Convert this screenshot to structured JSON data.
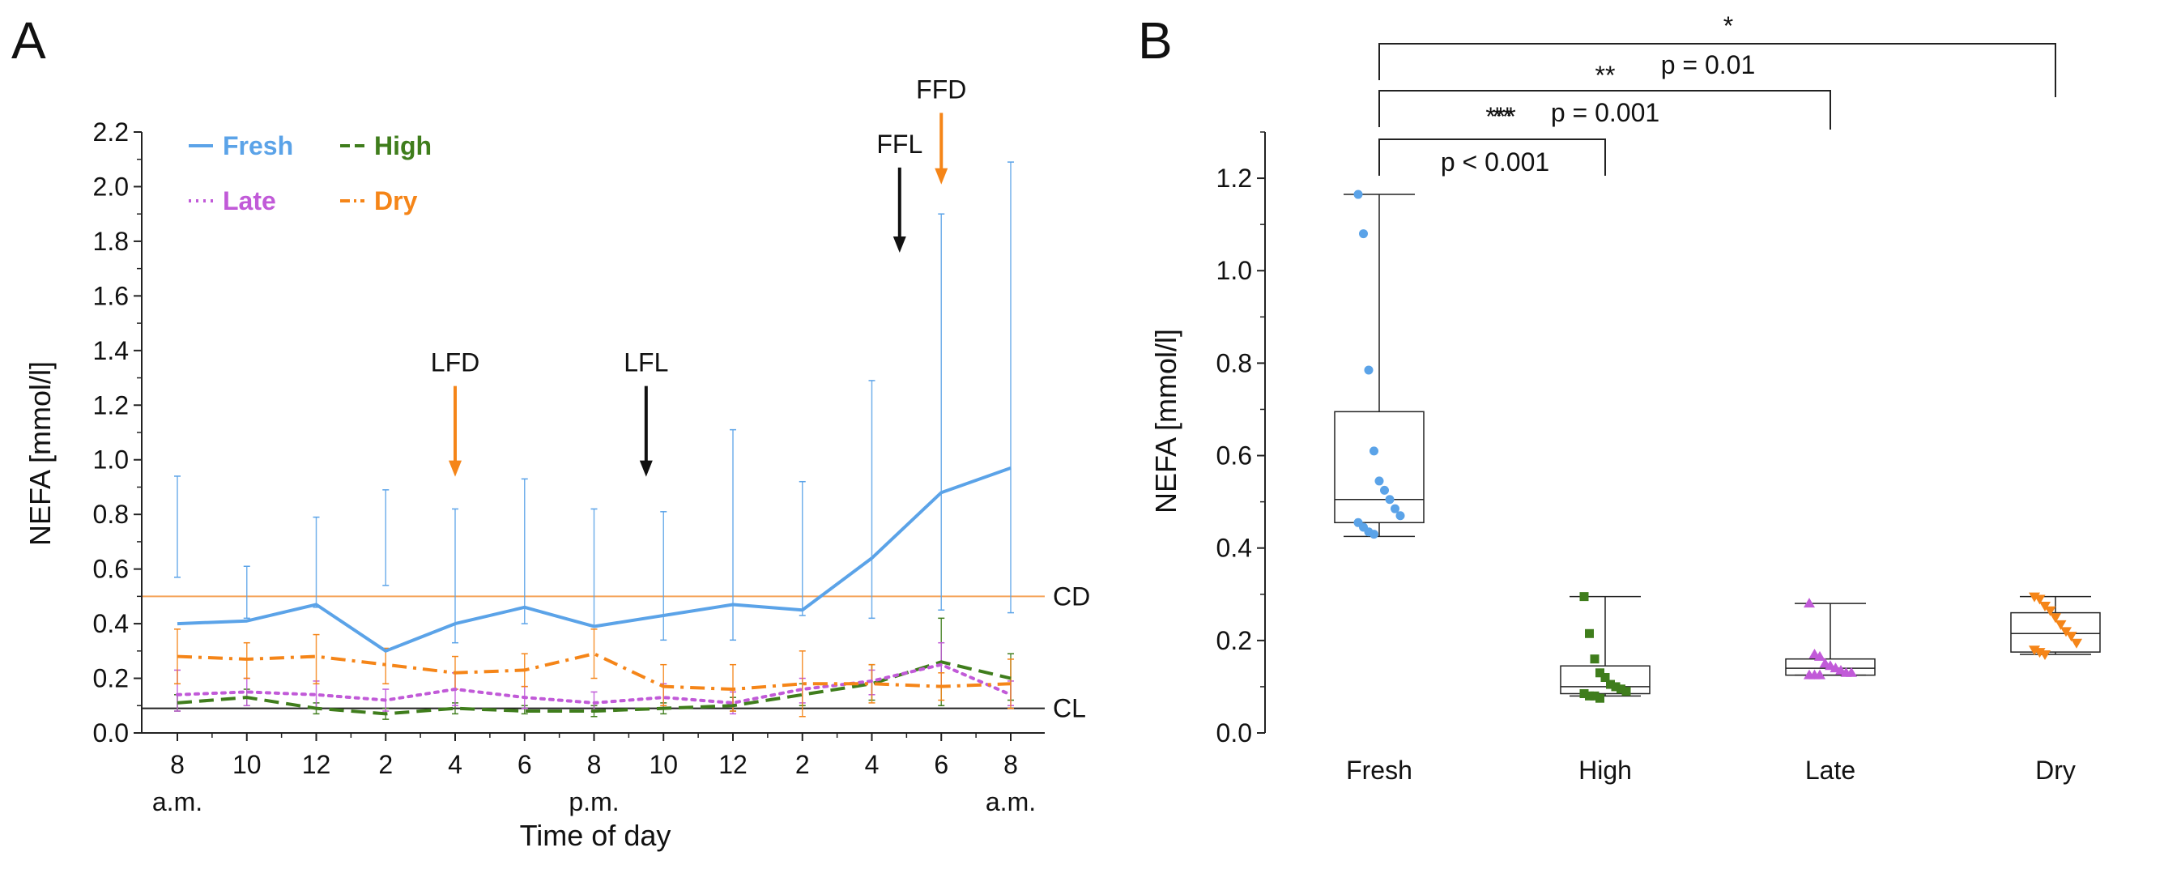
{
  "chart_data": [
    {
      "panel": "A",
      "type": "line",
      "xlabel": "Time of day",
      "ylabel": "NEFA [mmol/l]",
      "ylim": [
        0,
        2.2
      ],
      "yticks": [
        "0.0",
        "0.2",
        "0.4",
        "0.6",
        "0.8",
        "1.0",
        "1.2",
        "1.4",
        "1.6",
        "1.8",
        "2.0",
        "2.2"
      ],
      "categories": [
        "8",
        "10",
        "12",
        "2",
        "4",
        "6",
        "8",
        "10",
        "12",
        "2",
        "4",
        "6",
        "8"
      ],
      "period_labels": [
        {
          "at": 0,
          "text": "a.m."
        },
        {
          "at": 6,
          "text": "p.m."
        },
        {
          "at": 12,
          "text": "a.m."
        }
      ],
      "series": [
        {
          "name": "Fresh",
          "color": "#5ba3e8",
          "dash": "solid",
          "values": [
            0.4,
            0.41,
            0.47,
            0.3,
            0.4,
            0.46,
            0.39,
            0.43,
            0.47,
            0.45,
            0.64,
            0.88,
            0.97
          ],
          "err_up": [
            0.94,
            0.61,
            0.79,
            0.89,
            0.82,
            0.93,
            0.82,
            0.81,
            1.11,
            0.92,
            1.29,
            1.9,
            2.09
          ],
          "err_low": [
            0.57,
            0.42,
            0.46,
            0.54,
            0.33,
            0.4,
            0.39,
            0.34,
            0.34,
            0.43,
            0.42,
            0.45,
            0.44
          ]
        },
        {
          "name": "High",
          "color": "#3f7d1c",
          "dash": "long",
          "values": [
            0.11,
            0.13,
            0.09,
            0.07,
            0.09,
            0.08,
            0.08,
            0.09,
            0.1,
            0.14,
            0.18,
            0.26,
            0.2
          ],
          "err_up": [
            0.14,
            0.16,
            0.11,
            0.09,
            0.11,
            0.1,
            0.1,
            0.11,
            0.13,
            0.18,
            0.25,
            0.42,
            0.29
          ],
          "err_low": [
            0.08,
            0.1,
            0.07,
            0.05,
            0.07,
            0.07,
            0.06,
            0.07,
            0.08,
            0.1,
            0.12,
            0.1,
            0.12
          ]
        },
        {
          "name": "Late",
          "color": "#c15ad8",
          "dash": "dot",
          "values": [
            0.14,
            0.15,
            0.14,
            0.12,
            0.16,
            0.13,
            0.11,
            0.13,
            0.11,
            0.16,
            0.19,
            0.25,
            0.14
          ],
          "err_up": [
            0.23,
            0.2,
            0.19,
            0.16,
            0.22,
            0.17,
            0.15,
            0.18,
            0.15,
            0.2,
            0.23,
            0.33,
            0.19
          ],
          "err_low": [
            0.08,
            0.1,
            0.09,
            0.08,
            0.1,
            0.09,
            0.08,
            0.09,
            0.07,
            0.11,
            0.14,
            0.17,
            0.1
          ]
        },
        {
          "name": "Dry",
          "color": "#f58518",
          "dash": "dashdot",
          "values": [
            0.28,
            0.27,
            0.28,
            0.25,
            0.22,
            0.23,
            0.29,
            0.17,
            0.16,
            0.18,
            0.18,
            0.17,
            0.18
          ],
          "err_up": [
            0.38,
            0.33,
            0.36,
            0.31,
            0.28,
            0.29,
            0.38,
            0.25,
            0.25,
            0.3,
            0.25,
            0.22,
            0.27
          ],
          "err_low": [
            0.18,
            0.2,
            0.18,
            0.18,
            0.16,
            0.17,
            0.2,
            0.1,
            0.08,
            0.06,
            0.11,
            0.12,
            0.09
          ]
        }
      ],
      "reference_lines": [
        {
          "name": "CD",
          "y": 0.5,
          "color": "#f5a35a"
        },
        {
          "name": "CL",
          "y": 0.09,
          "color": "#222222"
        }
      ],
      "arrows": [
        {
          "label": "LFD",
          "at": 4,
          "color": "#f58518",
          "top": 1.27,
          "bottom": 0.95
        },
        {
          "label": "LFL",
          "at": 6.75,
          "color": "#111111",
          "top": 1.27,
          "bottom": 0.95
        },
        {
          "label": "FFL",
          "at": 10.4,
          "color": "#111111",
          "top": 2.07,
          "bottom": 1.77
        },
        {
          "label": "FFD",
          "at": 11,
          "color": "#f58518",
          "top": 2.27,
          "bottom": 2.02
        }
      ],
      "legend": [
        {
          "name": "Fresh",
          "color": "#5ba3e8"
        },
        {
          "name": "High",
          "color": "#3f7d1c"
        },
        {
          "name": "Late",
          "color": "#c15ad8"
        },
        {
          "name": "Dry",
          "color": "#f58518"
        }
      ]
    },
    {
      "panel": "B",
      "type": "box",
      "ylabel": "NEFA [mmol/l]",
      "ylim": [
        0,
        1.3
      ],
      "yticks": [
        "0.0",
        "0.2",
        "0.4",
        "0.6",
        "0.8",
        "1.0",
        "1.2"
      ],
      "categories": [
        "Fresh",
        "High",
        "Late",
        "Dry"
      ],
      "boxes": [
        {
          "name": "Fresh",
          "color": "#5ba3e8",
          "marker": "circle",
          "whisker_low": 0.425,
          "q1": 0.455,
          "median": 0.505,
          "q3": 0.695,
          "whisker_high": 1.165,
          "points": [
            1.165,
            1.08,
            0.785,
            0.61,
            0.545,
            0.525,
            0.505,
            0.485,
            0.47,
            0.455,
            0.445,
            0.435,
            0.43
          ]
        },
        {
          "name": "High",
          "color": "#3f7d1c",
          "marker": "square",
          "whisker_low": 0.08,
          "q1": 0.085,
          "median": 0.1,
          "q3": 0.145,
          "whisker_high": 0.295,
          "points": [
            0.295,
            0.215,
            0.16,
            0.13,
            0.12,
            0.105,
            0.1,
            0.095,
            0.09,
            0.085,
            0.08,
            0.08,
            0.075
          ]
        },
        {
          "name": "Late",
          "color": "#c15ad8",
          "marker": "triangle",
          "whisker_low": 0.125,
          "q1": 0.125,
          "median": 0.14,
          "q3": 0.16,
          "whisker_high": 0.28,
          "points": [
            0.28,
            0.17,
            0.165,
            0.15,
            0.145,
            0.14,
            0.135,
            0.13,
            0.13,
            0.125,
            0.125,
            0.125
          ]
        },
        {
          "name": "Dry",
          "color": "#f58518",
          "marker": "triangle-down",
          "whisker_low": 0.17,
          "q1": 0.175,
          "median": 0.215,
          "q3": 0.26,
          "whisker_high": 0.295,
          "points": [
            0.295,
            0.29,
            0.275,
            0.265,
            0.25,
            0.235,
            0.22,
            0.21,
            0.195,
            0.18,
            0.175,
            0.17
          ]
        }
      ],
      "significance": [
        {
          "from": "Fresh",
          "to": "High",
          "p_text": "p < 0.001",
          "stars": "***"
        },
        {
          "from": "Fresh",
          "to": "Late",
          "p_text": "p = 0.001",
          "stars": "**"
        },
        {
          "from": "Fresh",
          "to": "Dry",
          "p_text": "p = 0.01",
          "stars": "*"
        }
      ]
    }
  ]
}
